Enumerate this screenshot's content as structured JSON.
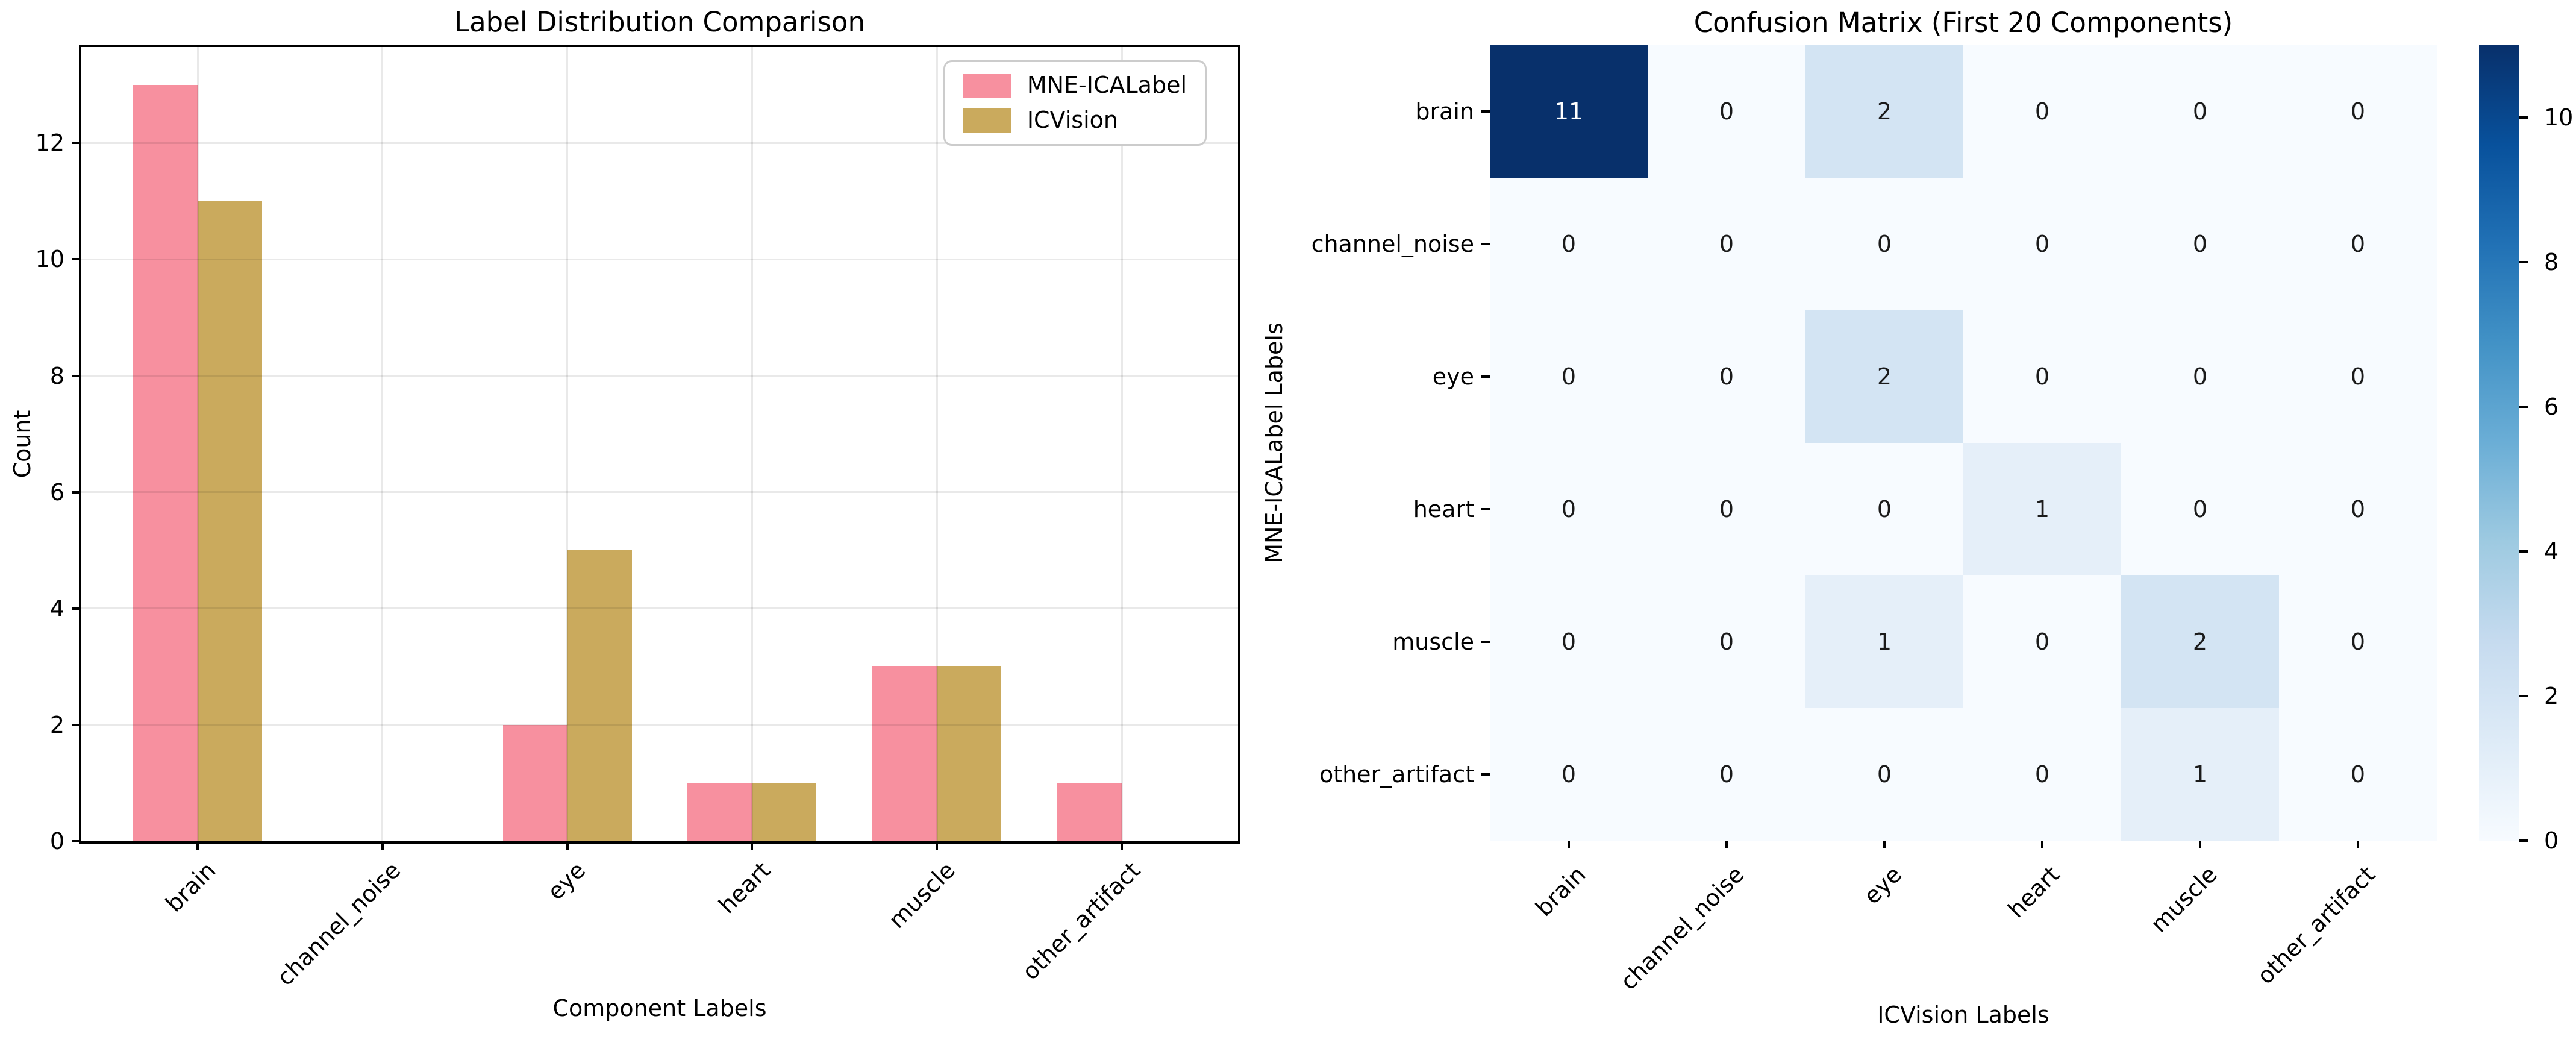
{
  "figure": {
    "background": "#ffffff"
  },
  "chart_data": [
    {
      "type": "bar",
      "title": "Label Distribution Comparison",
      "xlabel": "Component Labels",
      "ylabel": "Count",
      "categories": [
        "brain",
        "channel_noise",
        "eye",
        "heart",
        "muscle",
        "other_artifact"
      ],
      "series": [
        {
          "name": "MNE-ICALabel",
          "color": "#F7909F",
          "values": [
            13,
            0,
            2,
            1,
            3,
            1
          ]
        },
        {
          "name": "ICVision",
          "color": "#CAAA5D",
          "values": [
            11,
            0,
            5,
            1,
            3,
            0
          ]
        }
      ],
      "yticks": [
        0,
        2,
        4,
        6,
        8,
        10,
        12
      ],
      "ylim": [
        0,
        13.65
      ],
      "grid": true,
      "legend_position": "upper right",
      "xtick_rotation_deg": 45
    },
    {
      "type": "heatmap",
      "title": "Confusion Matrix (First 20 Components)",
      "xlabel": "ICVision Labels",
      "ylabel": "MNE-ICALabel Labels",
      "row_labels": [
        "brain",
        "channel_noise",
        "eye",
        "heart",
        "muscle",
        "other_artifact"
      ],
      "col_labels": [
        "brain",
        "channel_noise",
        "eye",
        "heart",
        "muscle",
        "other_artifact"
      ],
      "values": [
        [
          11,
          0,
          2,
          0,
          0,
          0
        ],
        [
          0,
          0,
          0,
          0,
          0,
          0
        ],
        [
          0,
          0,
          2,
          0,
          0,
          0
        ],
        [
          0,
          0,
          0,
          1,
          0,
          0
        ],
        [
          0,
          0,
          1,
          0,
          2,
          0
        ],
        [
          0,
          0,
          0,
          0,
          1,
          0
        ]
      ],
      "vmin": 0,
      "vmax": 11,
      "colormap_name": "Blues",
      "colormap_stops": [
        "#f7fbff",
        "#deebf7",
        "#c6dbef",
        "#9ecae1",
        "#6baed6",
        "#4292c6",
        "#2171b5",
        "#08519c",
        "#08306b"
      ],
      "colorbar_ticks": [
        0,
        2,
        4,
        6,
        8,
        10
      ],
      "cell_text_color_dark": "#1a1a1a",
      "cell_text_color_light": "#ffffff",
      "grid": false,
      "xtick_rotation_deg": 45
    }
  ]
}
